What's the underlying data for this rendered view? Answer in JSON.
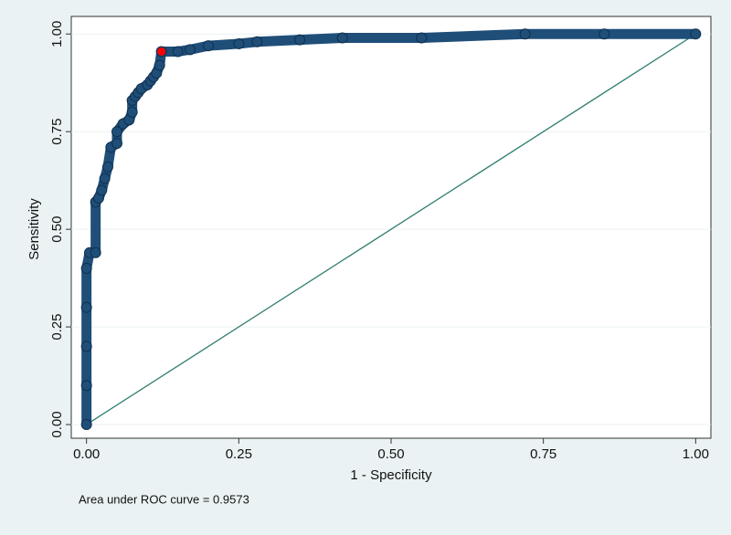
{
  "chart_data": {
    "type": "line",
    "x_label": "1 - Specificity",
    "y_label": "Sensitivity",
    "note": "Area under ROC curve = 0.9573",
    "xlim": [
      -0.025,
      1.025
    ],
    "ylim": [
      -0.035,
      1.045
    ],
    "xticks": [
      {
        "value": 0,
        "label": "0.00"
      },
      {
        "value": 0.25,
        "label": "0.25"
      },
      {
        "value": 0.5,
        "label": "0.50"
      },
      {
        "value": 0.75,
        "label": "0.75"
      },
      {
        "value": 1,
        "label": "1.00"
      }
    ],
    "yticks": [
      {
        "value": 0,
        "label": "0.00"
      },
      {
        "value": 0.25,
        "label": "0.25"
      },
      {
        "value": 0.5,
        "label": "0.50"
      },
      {
        "value": 0.75,
        "label": "0.75"
      },
      {
        "value": 1,
        "label": "1.00"
      }
    ],
    "grid": true,
    "series": [
      {
        "color": "#1f4e79",
        "x": [
          0,
          0,
          0,
          0,
          0,
          0.005,
          0.015,
          0.015,
          0.02,
          0.025,
          0.03,
          0.035,
          0.04,
          0.05,
          0.05,
          0.06,
          0.07,
          0.075,
          0.075,
          0.08,
          0.085,
          0.09,
          0.1,
          0.105,
          0.11,
          0.115,
          0.12,
          0.123,
          0.15,
          0.17,
          0.2,
          0.25,
          0.28,
          0.35,
          0.42,
          0.55,
          0.72,
          0.85,
          1
        ],
        "values": [
          0,
          0.1,
          0.2,
          0.3,
          0.4,
          0.44,
          0.44,
          0.57,
          0.58,
          0.6,
          0.63,
          0.66,
          0.71,
          0.72,
          0.75,
          0.77,
          0.78,
          0.8,
          0.83,
          0.84,
          0.85,
          0.86,
          0.87,
          0.88,
          0.89,
          0.9,
          0.92,
          0.955,
          0.955,
          0.96,
          0.97,
          0.975,
          0.98,
          0.985,
          0.99,
          0.99,
          1,
          1,
          1
        ]
      }
    ],
    "highlight": {
      "x": 0.123,
      "y": 0.955,
      "color": "#ff0000"
    },
    "reference_line": {
      "x": [
        0,
        1
      ],
      "values": [
        0,
        1
      ],
      "color": "#2e7b6f"
    }
  }
}
